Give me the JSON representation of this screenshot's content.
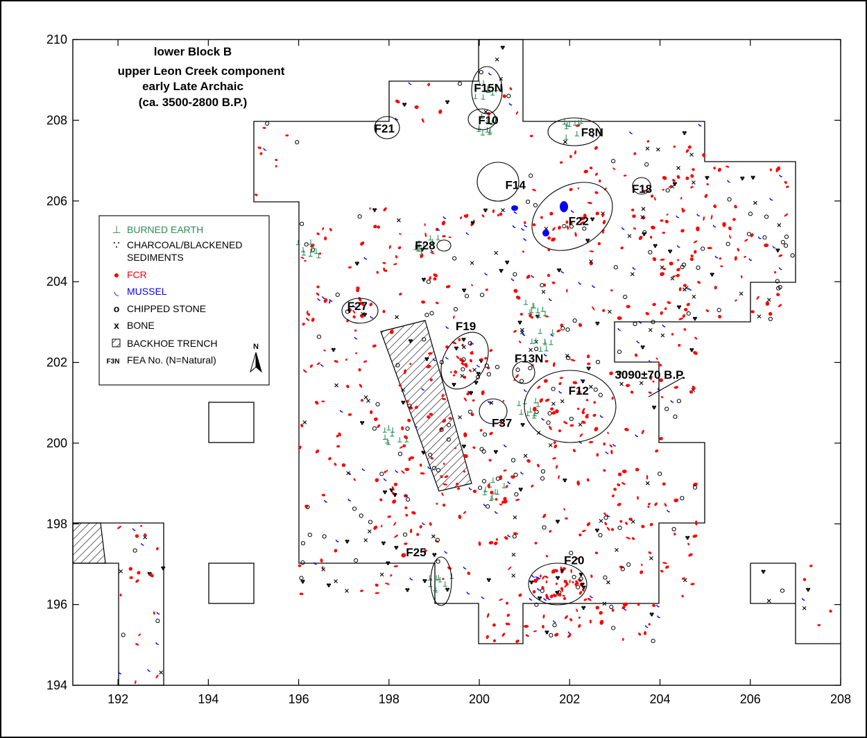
{
  "title": {
    "lines": [
      "lower Block B",
      "upper Leon Creek component",
      "early Late Archaic",
      "(ca. 3500-2800 B.P.)"
    ]
  },
  "axes": {
    "x": {
      "min": 191,
      "max": 208,
      "ticks": [
        192,
        194,
        196,
        198,
        200,
        202,
        204,
        206,
        208
      ]
    },
    "y": {
      "min": 194,
      "max": 210,
      "ticks": [
        194,
        196,
        198,
        200,
        202,
        204,
        206,
        208,
        210
      ]
    }
  },
  "legend": {
    "north_label": "N",
    "items": [
      {
        "symbol": "⊥",
        "label": "BURNED EARTH",
        "color": "#2e8b57"
      },
      {
        "symbol": "∵",
        "label": "CHARCOAL/BLACKENED",
        "label2": "SEDIMENTS",
        "color": "#000000"
      },
      {
        "symbol": "●",
        "label": "FCR",
        "color": "#ff0000"
      },
      {
        "symbol": "◟",
        "label": "MUSSEL",
        "color": "#0000ff"
      },
      {
        "symbol": "o",
        "label": "CHIPPED STONE",
        "color": "#000000"
      },
      {
        "symbol": "x",
        "label": "BONE",
        "color": "#000000"
      },
      {
        "symbol": "▨",
        "label": "BACKHOE TRENCH",
        "color": "#000000"
      },
      {
        "symbol": "F3N",
        "label": "FEA No. (N=Natural)",
        "color": "#000000"
      }
    ]
  },
  "features": [
    {
      "id": "F21",
      "x": 197.9,
      "y": 207.7
    },
    {
      "id": "F15N",
      "x": 200.2,
      "y": 208.7
    },
    {
      "id": "F10",
      "x": 200.2,
      "y": 207.9
    },
    {
      "id": "F8N",
      "x": 202.5,
      "y": 207.6
    },
    {
      "id": "F14",
      "x": 200.8,
      "y": 206.3
    },
    {
      "id": "F18",
      "x": 203.6,
      "y": 206.2
    },
    {
      "id": "F22",
      "x": 202.2,
      "y": 205.4
    },
    {
      "id": "F28",
      "x": 198.8,
      "y": 204.8
    },
    {
      "id": "F27",
      "x": 197.3,
      "y": 203.3
    },
    {
      "id": "F19",
      "x": 199.7,
      "y": 202.8
    },
    {
      "id": "F13N",
      "x": 201.1,
      "y": 202.0
    },
    {
      "id": "F12",
      "x": 202.2,
      "y": 201.2
    },
    {
      "id": "F37",
      "x": 200.5,
      "y": 200.4
    },
    {
      "id": "F25",
      "x": 198.6,
      "y": 197.2
    },
    {
      "id": "F20",
      "x": 202.1,
      "y": 197.0
    }
  ],
  "annotation": {
    "text": "3090±70 B.P.",
    "x": 203.0,
    "y": 201.6
  },
  "colors": {
    "fcr": "#ff0000",
    "mussel": "#0000ff",
    "burned_earth": "#2e8b57",
    "charcoal": "#000000",
    "outline": "#000000"
  }
}
